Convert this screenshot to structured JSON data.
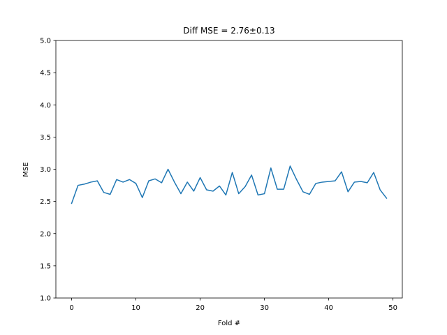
{
  "chart_data": {
    "type": "line",
    "title": "Diff MSE = 2.76±0.13",
    "xlabel": "Fold #",
    "ylabel": "MSE",
    "xlim": [
      -2.45,
      51.45
    ],
    "ylim": [
      1.0,
      5.0
    ],
    "xticks": [
      0,
      10,
      20,
      30,
      40,
      50
    ],
    "xtick_labels": [
      "0",
      "10",
      "20",
      "30",
      "40",
      "50"
    ],
    "yticks": [
      1.0,
      1.5,
      2.0,
      2.5,
      3.0,
      3.5,
      4.0,
      4.5,
      5.0
    ],
    "ytick_labels": [
      "1.0",
      "1.5",
      "2.0",
      "2.5",
      "3.0",
      "3.5",
      "4.0",
      "4.5",
      "5.0"
    ],
    "grid": false,
    "series": [
      {
        "color": "#1f77b4",
        "x": [
          0,
          1,
          2,
          3,
          4,
          5,
          6,
          7,
          8,
          9,
          10,
          11,
          12,
          13,
          14,
          15,
          16,
          17,
          18,
          19,
          20,
          21,
          22,
          23,
          24,
          25,
          26,
          27,
          28,
          29,
          30,
          31,
          32,
          33,
          34,
          35,
          36,
          37,
          38,
          39,
          40,
          41,
          42,
          43,
          44,
          45,
          46,
          47,
          48,
          49
        ],
        "y": [
          2.47,
          2.75,
          2.77,
          2.8,
          2.82,
          2.64,
          2.61,
          2.84,
          2.8,
          2.84,
          2.78,
          2.56,
          2.82,
          2.85,
          2.79,
          3.0,
          2.8,
          2.62,
          2.8,
          2.66,
          2.87,
          2.68,
          2.66,
          2.74,
          2.6,
          2.95,
          2.62,
          2.73,
          2.91,
          2.6,
          2.62,
          3.02,
          2.69,
          2.69,
          3.05,
          2.84,
          2.65,
          2.61,
          2.78,
          2.8,
          2.81,
          2.82,
          2.96,
          2.65,
          2.8,
          2.81,
          2.79,
          2.95,
          2.68,
          2.55
        ]
      }
    ]
  }
}
